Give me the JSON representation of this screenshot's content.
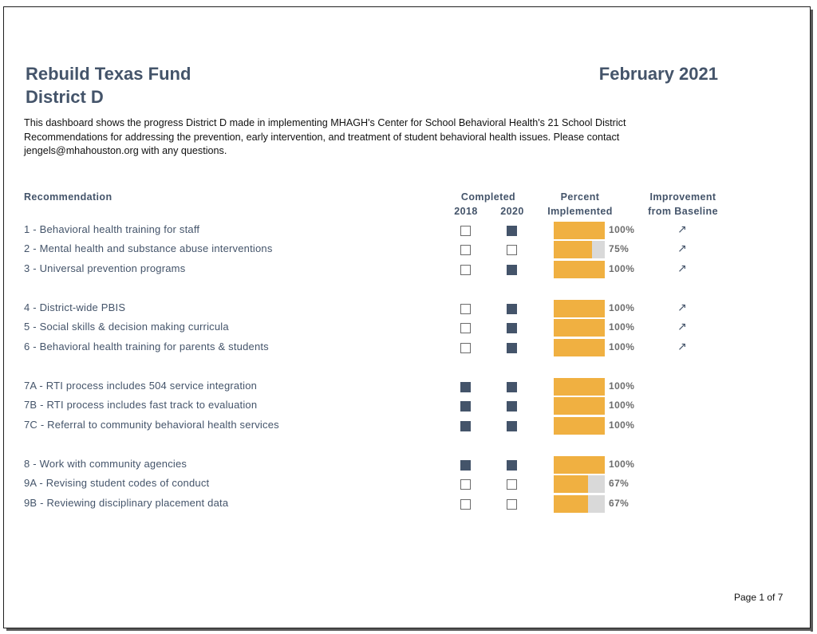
{
  "header": {
    "title_line1": "Rebuild Texas Fund",
    "title_line2": "District D",
    "date": "February 2021"
  },
  "description": {
    "line1": "This dashboard shows the progress District D made in implementing  MHAGH's Center for School Behavioral Health's 21 School District",
    "line2": "Recommendations for addressing the prevention, early intervention, and treatment of student behavioral health issues.  Please contact",
    "line3": "jengels@mhahouston.org with any questions."
  },
  "columns": {
    "recommendation": "Recommendation",
    "completed": "Completed",
    "year1": "2018",
    "year2": "2020",
    "percent_line1": "Percent",
    "percent_line2": "Implemented",
    "improvement_line1": "Improvement",
    "improvement_line2": "from Baseline"
  },
  "colors": {
    "accent_text": "#44546a",
    "bar_fill": "#f0b041",
    "bar_track": "#d9d9d9",
    "checked_box": "#44546a"
  },
  "rows": [
    {
      "label": "1 - Behavioral health training for staff",
      "c2018": false,
      "c2020": true,
      "percent": 100,
      "percent_label": "100%",
      "arrow": "↗"
    },
    {
      "label": "2 - Mental health and substance abuse interventions",
      "c2018": false,
      "c2020": false,
      "percent": 75,
      "percent_label": "75%",
      "arrow": "↗"
    },
    {
      "label": "3 - Universal prevention programs",
      "c2018": false,
      "c2020": true,
      "percent": 100,
      "percent_label": "100%",
      "arrow": "↗"
    },
    {
      "label": "4 - District-wide PBIS",
      "c2018": false,
      "c2020": true,
      "percent": 100,
      "percent_label": "100%",
      "arrow": "↗"
    },
    {
      "label": "5 - Social skills & decision making curricula",
      "c2018": false,
      "c2020": true,
      "percent": 100,
      "percent_label": "100%",
      "arrow": "↗"
    },
    {
      "label": "6 - Behavioral health training for parents & students",
      "c2018": false,
      "c2020": true,
      "percent": 100,
      "percent_label": "100%",
      "arrow": "↗"
    },
    {
      "label": "7A - RTI process includes 504 service integration",
      "c2018": true,
      "c2020": true,
      "percent": 100,
      "percent_label": "100%",
      "arrow": ""
    },
    {
      "label": "7B - RTI process includes fast track to evaluation",
      "c2018": true,
      "c2020": true,
      "percent": 100,
      "percent_label": "100%",
      "arrow": ""
    },
    {
      "label": "7C - Referral to community behavioral health services",
      "c2018": true,
      "c2020": true,
      "percent": 100,
      "percent_label": "100%",
      "arrow": ""
    },
    {
      "label": "8 - Work with community agencies",
      "c2018": true,
      "c2020": true,
      "percent": 100,
      "percent_label": "100%",
      "arrow": ""
    },
    {
      "label": "9A - Revising student codes of conduct",
      "c2018": false,
      "c2020": false,
      "percent": 67,
      "percent_label": "67%",
      "arrow": ""
    },
    {
      "label": "9B - Reviewing disciplinary placement data",
      "c2018": false,
      "c2020": false,
      "percent": 67,
      "percent_label": "67%",
      "arrow": ""
    }
  ],
  "footer": {
    "page": "Page 1 of  7"
  }
}
